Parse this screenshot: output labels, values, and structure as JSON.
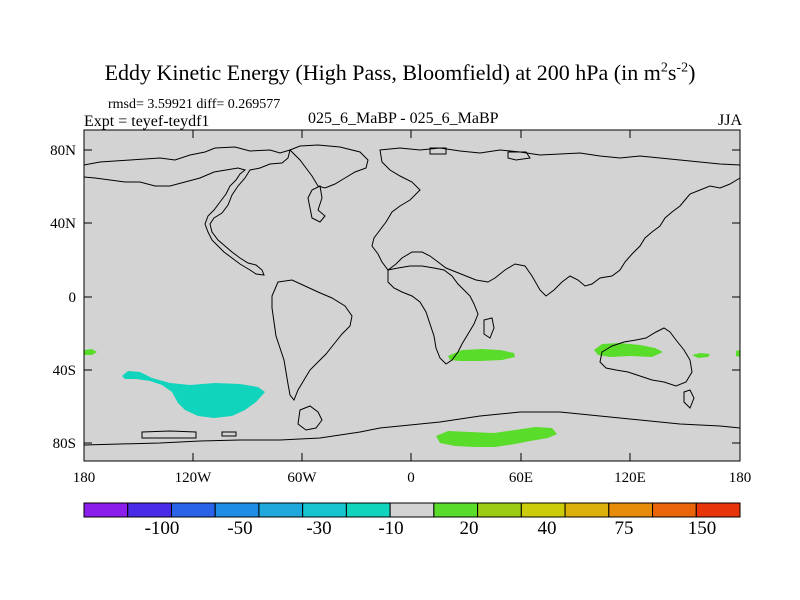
{
  "title": {
    "main": "Eddy Kinetic Energy (High Pass, Bloomfield) at 200 hPa (in m",
    "sup1": "2",
    "mid": "s",
    "sup2": "-2",
    "close": ")"
  },
  "stats": "rmsd= 3.59921 diff= 0.269577",
  "expt": "Expt = teyef-teydf1",
  "center_label": "025_6_MaBP - 025_6_MaBP",
  "season": "JJA",
  "colors": {
    "background": "#d3d3d3",
    "coast": "#000000"
  },
  "map": {
    "y_ticks": [
      "80N",
      "40N",
      "0",
      "40S",
      "80S"
    ],
    "x_ticks": [
      "180",
      "120W",
      "60W",
      "0",
      "60E",
      "120E",
      "180"
    ]
  },
  "colorbar": {
    "colors": [
      "#8c1eec",
      "#4a2be8",
      "#2a62e8",
      "#1e8ee4",
      "#1ea8dc",
      "#16c4d0",
      "#10d4bc",
      "#d3d3d3",
      "#5adc2a",
      "#9ccc14",
      "#cccc0a",
      "#dcb00a",
      "#e68c0a",
      "#ea640a",
      "#e8340a"
    ],
    "labels": [
      "-100",
      "-50",
      "-30",
      "-10",
      "20",
      "40",
      "75",
      "150"
    ]
  },
  "regions": [
    {
      "name": "pacific-teal-anomaly",
      "value": "-10 to -30",
      "color": "#10d4bc"
    },
    {
      "name": "indian-ocean-green-anomaly",
      "value": "10 to 20",
      "color": "#5adc2a"
    },
    {
      "name": "south-australia-green-anomaly",
      "value": "10 to 20",
      "color": "#5adc2a"
    },
    {
      "name": "southern-ocean-green-anomaly",
      "value": "10 to 20",
      "color": "#5adc2a"
    }
  ]
}
